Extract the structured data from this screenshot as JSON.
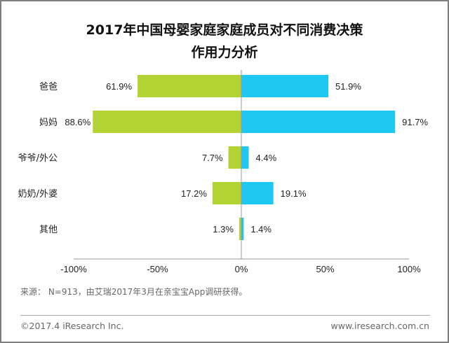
{
  "chart_data": {
    "type": "bar",
    "orientation": "horizontal-diverging",
    "title_line1": "2017年中国母婴家庭家庭成员对不同消费决策",
    "title_line2": "作用力分析",
    "categories": [
      "爸爸",
      "妈妈",
      "爷爷/外公",
      "奶奶/外婆",
      "其他"
    ],
    "series": [
      {
        "name": "left",
        "color": "#b3d334",
        "values": [
          61.9,
          88.6,
          7.7,
          17.2,
          1.3
        ],
        "labels": [
          "61.9%",
          "88.6%",
          "7.7%",
          "17.2%",
          "1.3%"
        ]
      },
      {
        "name": "right",
        "color": "#1fc8f1",
        "values": [
          51.9,
          91.7,
          4.4,
          19.1,
          1.4
        ],
        "labels": [
          "51.9%",
          "91.7%",
          "4.4%",
          "19.1%",
          "1.4%"
        ]
      }
    ],
    "xlim": [
      -100,
      100
    ],
    "xticks": [
      -100,
      -50,
      0,
      50,
      100
    ],
    "xtick_labels": [
      "-100%",
      "-50%",
      "0%",
      "50%",
      "100%"
    ],
    "grid": false,
    "legend": "none"
  },
  "footer": {
    "source": "来源： N=913，由艾瑞2017年3月在亲宝宝App调研获得。",
    "copyright": "©2017.4 iResearch Inc.",
    "url": "www.iresearch.com.cn"
  }
}
